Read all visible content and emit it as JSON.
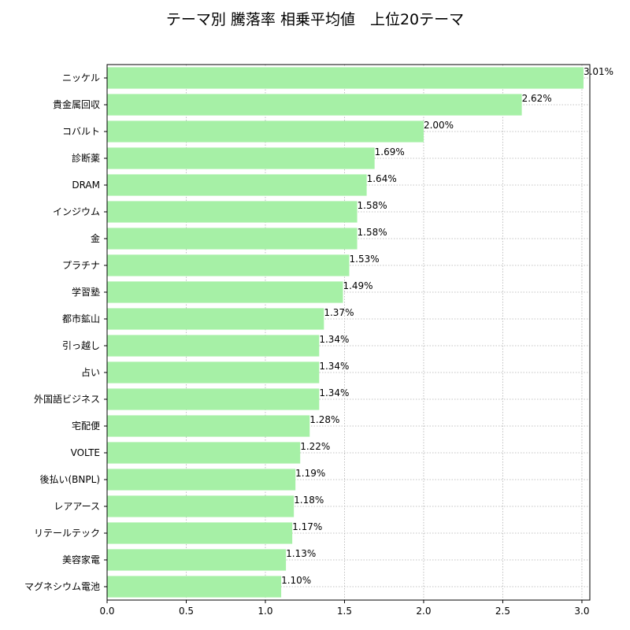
{
  "chart_data": {
    "type": "bar",
    "orientation": "horizontal",
    "title": "テーマ別 騰落率 相乗平均値　上位20テーマ",
    "xlabel": "",
    "ylabel": "",
    "xlim": [
      0,
      3.05
    ],
    "xticks": [
      "0.0",
      "0.5",
      "1.0",
      "1.5",
      "2.0",
      "2.5",
      "3.0"
    ],
    "grid": true,
    "bar_color": "#a6f0a6",
    "categories": [
      "ニッケル",
      "貴金属回収",
      "コバルト",
      "診断薬",
      "DRAM",
      "インジウム",
      "金",
      "プラチナ",
      "学習塾",
      "都市鉱山",
      "引っ越し",
      "占い",
      "外国語ビジネス",
      "宅配便",
      "VOLTE",
      "後払い(BNPL)",
      "レアアース",
      "リテールテック",
      "美容家電",
      "マグネシウム電池"
    ],
    "values": [
      3.01,
      2.62,
      2.0,
      1.69,
      1.64,
      1.58,
      1.58,
      1.53,
      1.49,
      1.37,
      1.34,
      1.34,
      1.34,
      1.28,
      1.22,
      1.19,
      1.18,
      1.17,
      1.13,
      1.1
    ],
    "value_labels": [
      "3.01%",
      "2.62%",
      "2.00%",
      "1.69%",
      "1.64%",
      "1.58%",
      "1.58%",
      "1.53%",
      "1.49%",
      "1.37%",
      "1.34%",
      "1.34%",
      "1.34%",
      "1.28%",
      "1.22%",
      "1.19%",
      "1.18%",
      "1.17%",
      "1.13%",
      "1.10%"
    ]
  }
}
